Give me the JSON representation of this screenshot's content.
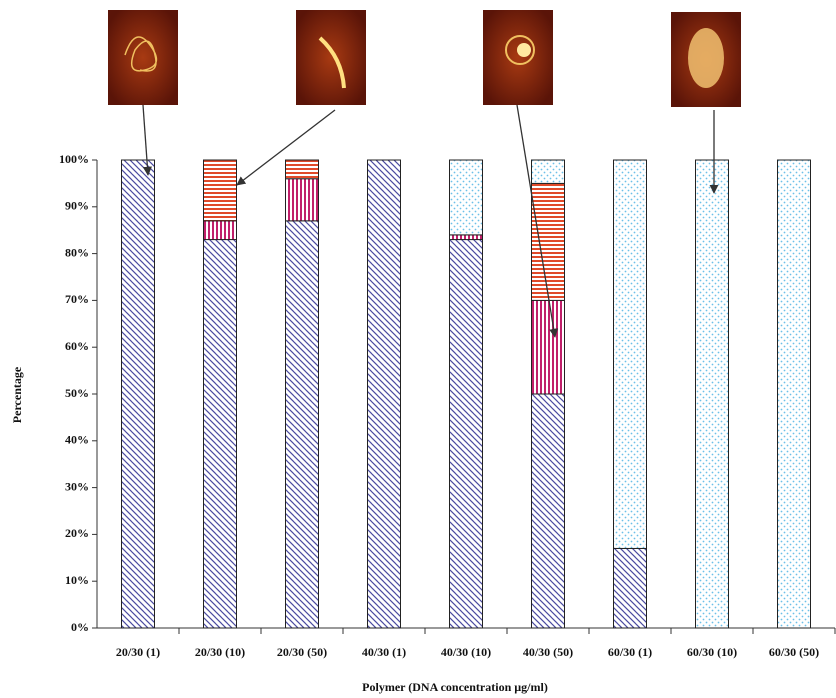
{
  "chart_data": {
    "type": "stacked_bar",
    "x_label": "Polymer (DNA concentration µg/ml)",
    "y_label": "Percentage",
    "categories": [
      "20/30 (1)",
      "20/30 (10)",
      "20/30 (50)",
      "40/30 (1)",
      "40/30 (10)",
      "40/30 (50)",
      "60/30 (1)",
      "60/30 (10)",
      "60/30 (50)"
    ],
    "series": [
      {
        "color": "#4a4aa0",
        "values": [
          100,
          83,
          87,
          100,
          83,
          50,
          17,
          0,
          0
        ]
      },
      {
        "color": "#c0206a",
        "values": [
          0,
          4,
          9,
          0,
          1,
          20,
          0,
          0,
          0
        ]
      },
      {
        "color": "#e04a2a",
        "values": [
          0,
          13,
          4,
          0,
          0,
          25,
          0,
          0,
          0
        ]
      },
      {
        "color": "#6cc0e8",
        "values": [
          0,
          0,
          0,
          0,
          16,
          5,
          83,
          100,
          100
        ]
      }
    ],
    "ylim": [
      0,
      100
    ],
    "yticks": [
      {
        "value": 0,
        "label": "0%"
      },
      {
        "value": 10,
        "label": "10%"
      },
      {
        "value": 20,
        "label": "20%"
      },
      {
        "value": 30,
        "label": "30%"
      },
      {
        "value": 40,
        "label": "40%"
      },
      {
        "value": 50,
        "label": "50%"
      },
      {
        "value": 60,
        "label": "60%"
      },
      {
        "value": 70,
        "label": "70%"
      },
      {
        "value": 80,
        "label": "80%"
      },
      {
        "value": 90,
        "label": "90%"
      },
      {
        "value": 100,
        "label": "100%"
      }
    ]
  }
}
